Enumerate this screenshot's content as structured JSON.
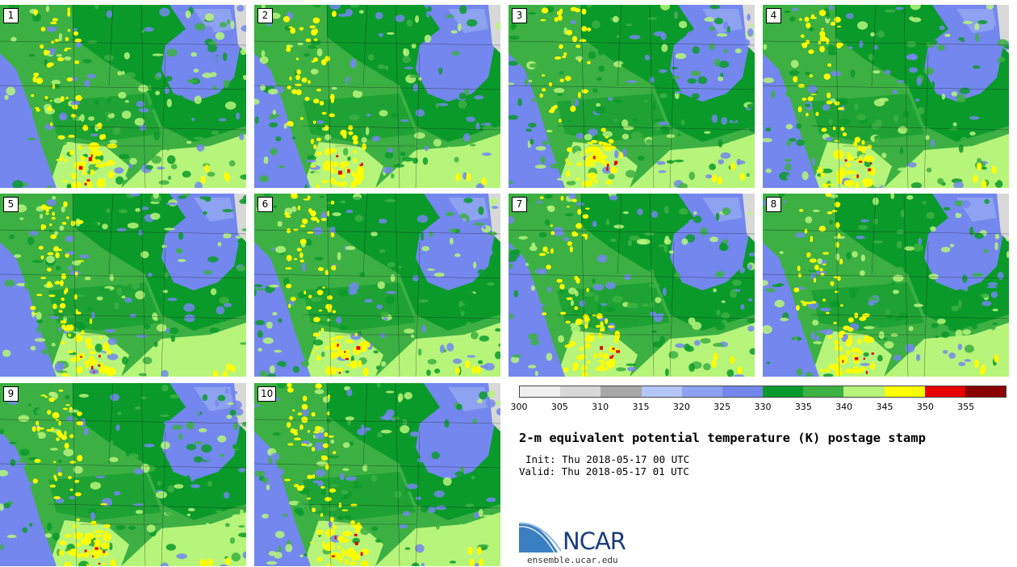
{
  "panels": [
    {
      "label": "1",
      "seed": 11
    },
    {
      "label": "2",
      "seed": 23
    },
    {
      "label": "3",
      "seed": 37
    },
    {
      "label": "4",
      "seed": 41
    },
    {
      "label": "5",
      "seed": 53
    },
    {
      "label": "6",
      "seed": 67
    },
    {
      "label": "7",
      "seed": 71
    },
    {
      "label": "8",
      "seed": 83
    },
    {
      "label": "9",
      "seed": 97
    },
    {
      "label": "10",
      "seed": 101
    }
  ],
  "colorbar": {
    "colors": [
      "#f0f0f0",
      "#d8d8d8",
      "#a8a8a8",
      "#b3c6f7",
      "#8da2f0",
      "#7387ee",
      "#0a9a2a",
      "#3cb043",
      "#b7f47a",
      "#ffff00",
      "#e60000",
      "#8b0000"
    ],
    "ticks": [
      "300",
      "305",
      "310",
      "315",
      "320",
      "325",
      "330",
      "335",
      "340",
      "345",
      "350",
      "355"
    ]
  },
  "title": "2-m equivalent potential temperature (K) postage stamp",
  "init": "Init: Thu 2018-05-17 00 UTC",
  "valid": "Valid: Thu 2018-05-17 01 UTC",
  "logo": {
    "text": "NCAR",
    "url": "ensemble.ucar.edu",
    "color": "#1a3d7c",
    "swoosh_color": "#3a7fc1"
  }
}
